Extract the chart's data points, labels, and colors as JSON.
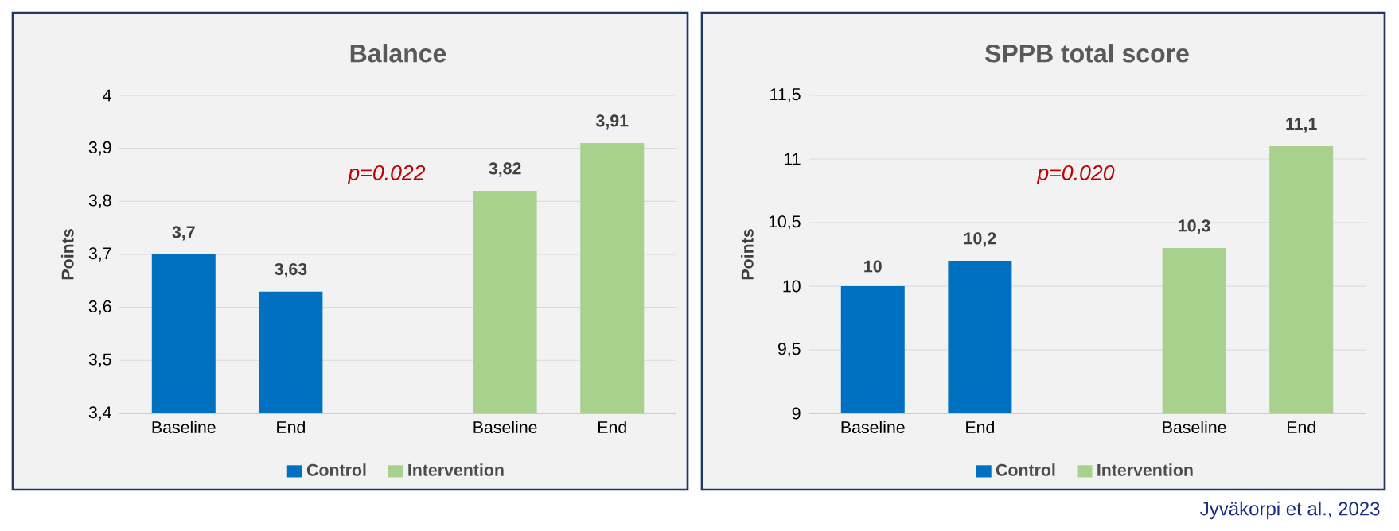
{
  "chart_data": [
    {
      "type": "bar",
      "title": "Balance",
      "ylabel": "Points",
      "categories": [
        "Baseline",
        "End",
        null,
        "Baseline",
        "End"
      ],
      "series": [
        {
          "name": "Control",
          "color": "#0070c0",
          "values": [
            3.7,
            3.63,
            null,
            null,
            null
          ],
          "value_labels": [
            "3,7",
            "3,63",
            null,
            null,
            null
          ]
        },
        {
          "name": "Intervention",
          "color": "#a9d18e",
          "values": [
            null,
            null,
            null,
            3.82,
            3.91
          ],
          "value_labels": [
            null,
            null,
            null,
            "3,82",
            "3,91"
          ]
        }
      ],
      "ylim": [
        3.4,
        4
      ],
      "yticks": [
        {
          "value": 3.4,
          "label": "3,4"
        },
        {
          "value": 3.5,
          "label": "3,5"
        },
        {
          "value": 3.6,
          "label": "3,6"
        },
        {
          "value": 3.7,
          "label": "3,7"
        },
        {
          "value": 3.8,
          "label": "3,8"
        },
        {
          "value": 3.9,
          "label": "3,9"
        },
        4
      ],
      "grid": "y",
      "legend": "bottom",
      "annotations": [
        "p=0.022"
      ]
    },
    {
      "type": "bar",
      "title": "SPPB total score",
      "ylabel": "Points",
      "categories": [
        "Baseline",
        "End",
        null,
        "Baseline",
        "End"
      ],
      "series": [
        {
          "name": "Control",
          "color": "#0070c0",
          "values": [
            10,
            10.2,
            null,
            null,
            null
          ],
          "value_labels": [
            "10",
            "10,2",
            null,
            null,
            null
          ]
        },
        {
          "name": "Intervention",
          "color": "#a9d18e",
          "values": [
            null,
            null,
            null,
            10.3,
            11.1
          ],
          "value_labels": [
            null,
            null,
            null,
            "10,3",
            "11,1"
          ]
        }
      ],
      "ylim": [
        9,
        11.5
      ],
      "yticks": [
        9,
        {
          "value": 9.5,
          "label": "9,5"
        },
        10,
        {
          "value": 10.5,
          "label": "10,5"
        },
        11,
        {
          "value": 11.5,
          "label": "11,5"
        }
      ],
      "grid": "y",
      "legend": "bottom",
      "annotations": [
        "p=0.020",
        "Jyväkorpi et al., 2023"
      ]
    }
  ]
}
